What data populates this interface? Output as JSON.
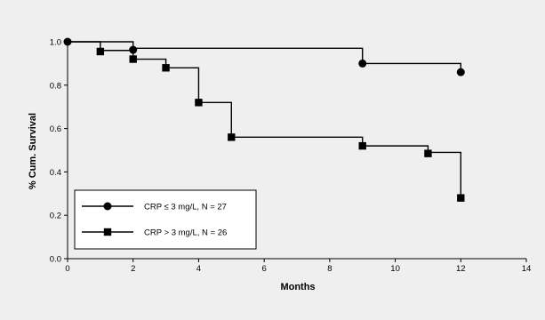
{
  "chart_data": {
    "type": "line",
    "title": "",
    "xlabel": "Months",
    "ylabel": "% Cum. Survival",
    "xlim": [
      0,
      14
    ],
    "ylim": [
      0.0,
      1.0
    ],
    "x_ticks": [
      0,
      2,
      4,
      6,
      8,
      10,
      12,
      14
    ],
    "y_ticks": [
      0.0,
      0.2,
      0.4,
      0.6,
      0.8,
      1.0
    ],
    "y_tick_labels": [
      "0.0",
      "0.2",
      "0.4",
      "0.6",
      "0.8",
      "1.0"
    ],
    "grid": false,
    "legend_position": "bottom-left",
    "series": [
      {
        "name": "CRP ≤  3 mg/L, N = 27",
        "marker": "circle",
        "step": [
          [
            0,
            1.0
          ],
          [
            2,
            1.0
          ],
          [
            2,
            0.97
          ],
          [
            9,
            0.97
          ],
          [
            9,
            0.9
          ],
          [
            12,
            0.9
          ],
          [
            12,
            0.86
          ]
        ],
        "points": [
          [
            0,
            1.0
          ],
          [
            2,
            0.963
          ],
          [
            9,
            0.9
          ],
          [
            12,
            0.86
          ]
        ]
      },
      {
        "name": "CRP > 3 mg/L, N = 26",
        "marker": "square",
        "step": [
          [
            0,
            1.0
          ],
          [
            1,
            1.0
          ],
          [
            1,
            0.96
          ],
          [
            2,
            0.96
          ],
          [
            2,
            0.92
          ],
          [
            3,
            0.92
          ],
          [
            3,
            0.88
          ],
          [
            4,
            0.88
          ],
          [
            4,
            0.72
          ],
          [
            5,
            0.72
          ],
          [
            5,
            0.56
          ],
          [
            9,
            0.56
          ],
          [
            9,
            0.52
          ],
          [
            11,
            0.52
          ],
          [
            11,
            0.49
          ],
          [
            12,
            0.49
          ],
          [
            12,
            0.28
          ]
        ],
        "points": [
          [
            1,
            0.955
          ],
          [
            2,
            0.92
          ],
          [
            3,
            0.88
          ],
          [
            4,
            0.72
          ],
          [
            5,
            0.56
          ],
          [
            9,
            0.52
          ],
          [
            11,
            0.485
          ],
          [
            12,
            0.28
          ]
        ]
      }
    ]
  }
}
